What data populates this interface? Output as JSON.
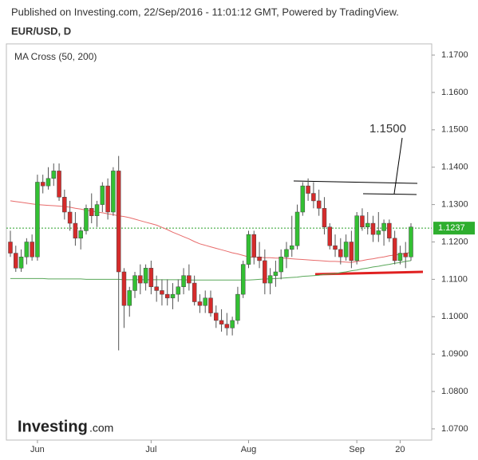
{
  "header": {
    "published": "Published on Investing.com, 22/Sep/2016 - 11:01:12 GMT, Powered by TradingView."
  },
  "logo": {
    "name": "Investing",
    "suffix": ".com"
  },
  "chart_data": {
    "type": "candlestick",
    "title": "EUR/USD, D",
    "indicator": "MA Cross (50, 200)",
    "annotation": "1.1500",
    "categories": [
      null,
      null,
      null,
      null,
      null,
      "Jun",
      null,
      null,
      null,
      null,
      null,
      null,
      null,
      null,
      null,
      null,
      null,
      null,
      null,
      null,
      null,
      null,
      null,
      null,
      null,
      null,
      "Jul",
      null,
      null,
      null,
      null,
      null,
      null,
      null,
      null,
      null,
      null,
      null,
      null,
      null,
      null,
      null,
      null,
      null,
      "Aug",
      null,
      null,
      null,
      null,
      null,
      null,
      null,
      null,
      null,
      null,
      null,
      null,
      null,
      null,
      null,
      null,
      null,
      null,
      null,
      "Sep",
      null,
      null,
      null,
      null,
      null,
      null,
      null,
      "20",
      null,
      null
    ],
    "open": [
      1.12,
      1.117,
      1.113,
      1.116,
      1.12,
      1.116,
      1.136,
      1.135,
      1.137,
      1.139,
      1.132,
      1.128,
      1.125,
      1.121,
      1.123,
      1.129,
      1.127,
      1.13,
      1.135,
      1.128,
      1.139,
      1.112,
      1.103,
      1.107,
      1.111,
      1.109,
      1.113,
      1.108,
      1.107,
      1.106,
      1.105,
      1.106,
      1.108,
      1.111,
      1.109,
      1.104,
      1.103,
      1.105,
      1.101,
      1.099,
      1.098,
      1.097,
      1.099,
      1.106,
      1.114,
      1.122,
      1.116,
      1.115,
      1.109,
      1.111,
      1.112,
      1.116,
      1.118,
      1.119,
      1.128,
      1.135,
      1.133,
      1.131,
      1.129,
      1.124,
      1.119,
      1.118,
      1.116,
      1.12,
      1.115,
      1.127,
      1.124,
      1.125,
      1.122,
      1.123,
      1.125,
      1.121,
      1.115,
      1.117,
      1.116
    ],
    "high": [
      1.123,
      1.119,
      1.118,
      1.121,
      1.122,
      1.138,
      1.138,
      1.14,
      1.141,
      1.141,
      1.134,
      1.131,
      1.128,
      1.124,
      1.13,
      1.133,
      1.131,
      1.136,
      1.137,
      1.14,
      1.143,
      1.113,
      1.108,
      1.112,
      1.114,
      1.114,
      1.115,
      1.111,
      1.11,
      1.11,
      1.109,
      1.11,
      1.113,
      1.114,
      1.111,
      1.106,
      1.107,
      1.107,
      1.103,
      1.102,
      1.101,
      1.1,
      1.108,
      1.115,
      1.123,
      1.123,
      1.12,
      1.118,
      1.113,
      1.115,
      1.118,
      1.12,
      1.127,
      1.13,
      1.136,
      1.137,
      1.136,
      1.134,
      1.132,
      1.125,
      1.122,
      1.121,
      1.122,
      1.123,
      1.128,
      1.129,
      1.128,
      1.127,
      1.128,
      1.126,
      1.126,
      1.123,
      1.119,
      1.12,
      1.125
    ],
    "low": [
      1.116,
      1.112,
      1.112,
      1.114,
      1.115,
      1.115,
      1.133,
      1.134,
      1.135,
      1.131,
      1.126,
      1.123,
      1.119,
      1.118,
      1.122,
      1.125,
      1.124,
      1.128,
      1.126,
      1.127,
      1.091,
      1.097,
      1.1,
      1.105,
      1.106,
      1.107,
      1.106,
      1.104,
      1.103,
      1.103,
      1.102,
      1.104,
      1.106,
      1.107,
      1.103,
      1.101,
      1.101,
      1.1,
      1.097,
      1.096,
      1.095,
      1.095,
      1.098,
      1.105,
      1.113,
      1.114,
      1.113,
      1.106,
      1.106,
      1.108,
      1.11,
      1.113,
      1.116,
      1.118,
      1.127,
      1.131,
      1.129,
      1.127,
      1.122,
      1.118,
      1.116,
      1.114,
      1.115,
      1.113,
      1.114,
      1.123,
      1.122,
      1.12,
      1.12,
      1.119,
      1.12,
      1.114,
      1.114,
      1.113,
      1.115
    ],
    "close": [
      1.117,
      1.113,
      1.116,
      1.12,
      1.116,
      1.136,
      1.135,
      1.137,
      1.139,
      1.132,
      1.128,
      1.125,
      1.121,
      1.123,
      1.129,
      1.127,
      1.13,
      1.135,
      1.128,
      1.139,
      1.112,
      1.103,
      1.107,
      1.111,
      1.109,
      1.113,
      1.108,
      1.107,
      1.106,
      1.105,
      1.106,
      1.108,
      1.111,
      1.109,
      1.104,
      1.103,
      1.105,
      1.101,
      1.099,
      1.098,
      1.097,
      1.099,
      1.106,
      1.114,
      1.122,
      1.116,
      1.115,
      1.109,
      1.111,
      1.112,
      1.116,
      1.118,
      1.119,
      1.128,
      1.135,
      1.133,
      1.131,
      1.129,
      1.124,
      1.119,
      1.118,
      1.116,
      1.12,
      1.115,
      1.127,
      1.124,
      1.125,
      1.122,
      1.123,
      1.125,
      1.121,
      1.115,
      1.117,
      1.116,
      1.124
    ],
    "up_color": "#33c033",
    "down_color": "#d52b2b",
    "lines": [
      {
        "color": "#e86b6b",
        "values": [
          1.131,
          1.1308,
          1.1306,
          1.1304,
          1.1302,
          1.13,
          1.1299,
          1.1298,
          1.1297,
          1.1296,
          1.1295,
          1.1293,
          1.129,
          1.1288,
          1.1285,
          1.1283,
          1.128,
          1.1278,
          1.1275,
          1.1273,
          1.127,
          1.1268,
          1.1265,
          1.1261,
          1.1257,
          1.1253,
          1.1249,
          1.1245,
          1.1239,
          1.1233,
          1.1226,
          1.122,
          1.1214,
          1.1208,
          1.1201,
          1.1195,
          1.1191,
          1.1187,
          1.1183,
          1.1179,
          1.1175,
          1.1171,
          1.1168,
          1.1164,
          1.116,
          1.1159,
          1.1159,
          1.1158,
          1.1158,
          1.1157,
          1.1157,
          1.1156,
          1.1155,
          1.1154,
          1.1153,
          1.1152,
          1.1151,
          1.115,
          1.1149,
          1.1148,
          1.1148,
          1.1147,
          1.1146,
          1.1145,
          1.1148,
          1.115,
          1.1153,
          1.1155,
          1.1158,
          1.116,
          1.1163,
          1.1165,
          1.1167,
          1.117,
          1.1172
        ]
      },
      {
        "color": "#5aa85a",
        "values": [
          1.1102,
          1.1102,
          1.1102,
          1.1102,
          1.1102,
          1.1102,
          1.1102,
          1.1101,
          1.1101,
          1.1101,
          1.1101,
          1.1101,
          1.1101,
          1.1101,
          1.11,
          1.11,
          1.11,
          1.11,
          1.11,
          1.11,
          1.11,
          1.1099,
          1.1099,
          1.1099,
          1.1099,
          1.1099,
          1.1099,
          1.1099,
          1.1099,
          1.1099,
          1.1099,
          1.1099,
          1.1099,
          1.1098,
          1.1098,
          1.1098,
          1.1098,
          1.1098,
          1.1098,
          1.1098,
          1.1098,
          1.1098,
          1.1098,
          1.1098,
          1.1098,
          1.1099,
          1.11,
          1.1101,
          1.1101,
          1.1102,
          1.1103,
          1.1104,
          1.1105,
          1.1106,
          1.1108,
          1.1109,
          1.111,
          1.1111,
          1.1113,
          1.1114,
          1.1115,
          1.1118,
          1.112,
          1.1123,
          1.1125,
          1.1128,
          1.113,
          1.1133,
          1.1135,
          1.1138,
          1.114,
          1.1143,
          1.1145,
          1.1148,
          1.115
        ]
      }
    ],
    "last_price": 1.1237,
    "ylim": [
      1.067,
      1.173
    ],
    "yticks": [
      {
        "value": 1.07,
        "label": "1.0700"
      },
      {
        "value": 1.08,
        "label": "1.0800"
      },
      {
        "value": 1.09,
        "label": "1.0900"
      },
      {
        "value": 1.1,
        "label": "1.1000"
      },
      {
        "value": 1.11,
        "label": "1.1100"
      },
      {
        "value": 1.12,
        "label": "1.1200"
      },
      {
        "value": 1.13,
        "label": "1.1300"
      },
      {
        "value": 1.14,
        "label": "1.1400"
      },
      {
        "value": 1.15,
        "label": "1.1500"
      },
      {
        "value": 1.16,
        "label": "1.1600"
      },
      {
        "value": 1.17,
        "label": "1.1700"
      }
    ]
  }
}
